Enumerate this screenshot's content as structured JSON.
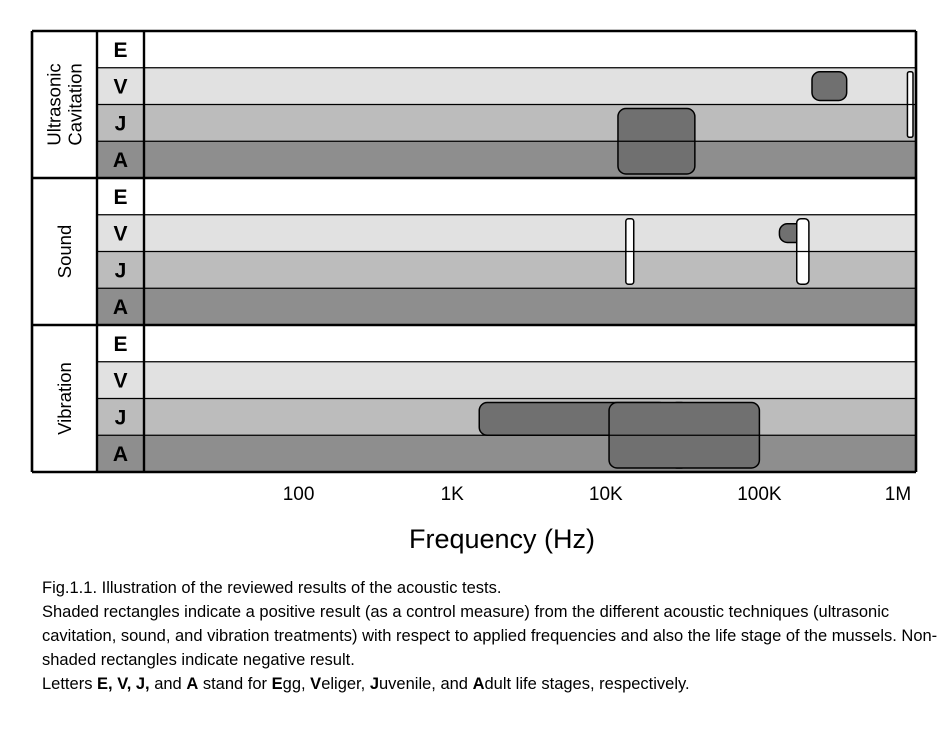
{
  "chart_data": {
    "type": "range",
    "xlabel": "Frequency (Hz)",
    "x_scale": "log",
    "xlim": [
      10,
      1000000
    ],
    "x_ticks": [
      {
        "value": 100,
        "label": "100"
      },
      {
        "value": 1000,
        "label": "1K"
      },
      {
        "value": 10000,
        "label": "10K"
      },
      {
        "value": 100000,
        "label": "100K"
      },
      {
        "value": 1000000,
        "label": "1M"
      }
    ],
    "stages": [
      "E",
      "V",
      "J",
      "A"
    ],
    "groups": [
      {
        "name": "Ultrasonic\nCavitation",
        "rows": [
          "E",
          "V",
          "J",
          "A"
        ]
      },
      {
        "name": "Sound",
        "rows": [
          "E",
          "V",
          "J",
          "A"
        ]
      },
      {
        "name": "Vibration",
        "rows": [
          "E",
          "V",
          "J",
          "A"
        ]
      }
    ],
    "row_colors": {
      "E": "#ffffff",
      "V": "#e1e1e1",
      "J": "#bcbcbc",
      "A": "#8e8e8e"
    },
    "colors": {
      "positive": "#707070",
      "negative": "#ffffff"
    },
    "results": [
      {
        "group": 0,
        "stages": [
          "J",
          "A"
        ],
        "x_from": 12000,
        "x_to": 38000,
        "positive": true
      },
      {
        "group": 0,
        "stages": [
          "V"
        ],
        "x_from": 220000,
        "x_to": 370000,
        "positive": true
      },
      {
        "group": 0,
        "stages": [
          "V",
          "J"
        ],
        "x_from": 920000,
        "x_to": 1000000,
        "positive": false
      },
      {
        "group": 1,
        "stages": [
          "V"
        ],
        "x_from": 135000,
        "x_to": 0,
        "positive": true
      },
      {
        "group": 1,
        "stages": [
          "V",
          "J"
        ],
        "x_from": 13500,
        "x_to": 15200,
        "positive": false
      },
      {
        "group": 1,
        "stages": [
          "V",
          "J"
        ],
        "x_from": 175000,
        "x_to": 210000,
        "positive": false
      },
      {
        "group": 2,
        "stages": [
          "J",
          "A"
        ],
        "x_from": 27000,
        "x_to": 0,
        "positive": true
      },
      {
        "group": 2,
        "stages": [
          "J"
        ],
        "x_from": 1500,
        "x_to": 25000,
        "positive": true
      },
      {
        "group": 2,
        "stages": [
          "J",
          "A"
        ],
        "x_from": 10500,
        "x_to": 100000,
        "positive": true
      }
    ]
  },
  "caption": {
    "line1": "Fig.1.1. Illustration of the reviewed results of the acoustic tests.",
    "line2": "Shaded rectangles indicate a positive result (as a control measure) from the different acoustic techniques (ultrasonic cavitation, sound, and vibration treatments) with respect to applied frequencies and also the life stage of the mussels. Non-shaded rectangles indicate negative result.",
    "line3": {
      "p1": "Letters ",
      "b1": "E, V, J,",
      "p2": " and ",
      "b2": "A",
      "p3": " stand for ",
      "b3": "E",
      "p4": "gg, ",
      "b4": "V",
      "p5": "eliger, ",
      "b5": "J",
      "p6": "uvenile, and ",
      "b6": "A",
      "p7": "dult life stages, respectively."
    }
  }
}
